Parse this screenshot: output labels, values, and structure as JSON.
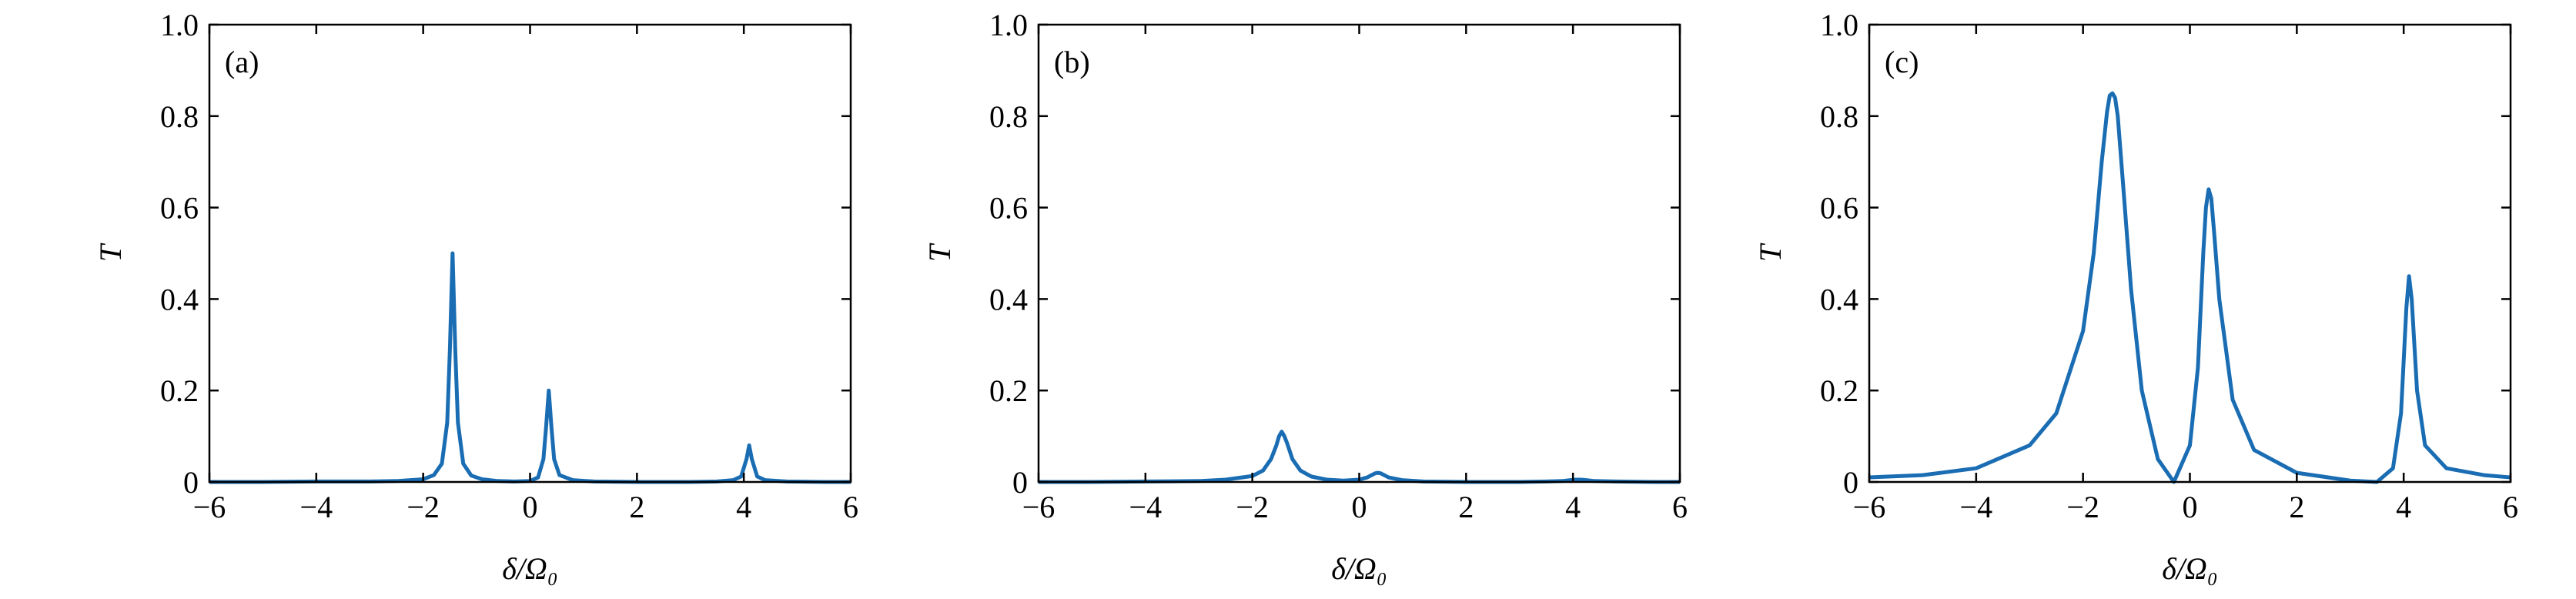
{
  "chart_data": [
    {
      "type": "line",
      "panel_label": "(a)",
      "xlabel": "δ/Ω₀",
      "ylabel": "T",
      "xlim": [
        -6,
        6
      ],
      "ylim": [
        0,
        1.0
      ],
      "xticks": [
        {
          "value": -6,
          "label": "−6"
        },
        {
          "value": -4,
          "label": "−4"
        },
        {
          "value": -2,
          "label": "−2"
        },
        0,
        2,
        4,
        6
      ],
      "yticks": [
        0,
        0.2,
        0.4,
        0.6,
        0.8,
        {
          "value": 1.0,
          "label": "1.0"
        }
      ],
      "x": [
        -6,
        -5,
        -4,
        -3,
        -2.5,
        -2,
        -1.8,
        -1.65,
        -1.55,
        -1.5,
        -1.45,
        -1.4,
        -1.35,
        -1.25,
        -1.1,
        -0.9,
        -0.6,
        -0.3,
        0,
        0.15,
        0.25,
        0.3,
        0.35,
        0.4,
        0.45,
        0.55,
        0.8,
        1.2,
        2,
        3,
        3.5,
        3.8,
        3.95,
        4.05,
        4.1,
        4.15,
        4.25,
        4.4,
        4.8,
        5.5,
        6
      ],
      "series": [
        {
          "color": "#1a6db3",
          "values": [
            0,
            0,
            0.001,
            0.001,
            0.002,
            0.006,
            0.015,
            0.04,
            0.13,
            0.29,
            0.5,
            0.29,
            0.13,
            0.04,
            0.014,
            0.006,
            0.002,
            0.001,
            0.002,
            0.01,
            0.05,
            0.12,
            0.2,
            0.12,
            0.05,
            0.015,
            0.004,
            0.001,
            0,
            0,
            0.001,
            0.004,
            0.012,
            0.05,
            0.08,
            0.05,
            0.012,
            0.004,
            0.001,
            0,
            0
          ]
        }
      ]
    },
    {
      "type": "line",
      "panel_label": "(b)",
      "xlabel": "δ/Ω₀",
      "ylabel": "T",
      "xlim": [
        -6,
        6
      ],
      "ylim": [
        0,
        1.0
      ],
      "xticks": [
        {
          "value": -6,
          "label": "−6"
        },
        {
          "value": -4,
          "label": "−4"
        },
        {
          "value": -2,
          "label": "−2"
        },
        0,
        2,
        4,
        6
      ],
      "yticks": [
        0,
        0.2,
        0.4,
        0.6,
        0.8,
        {
          "value": 1.0,
          "label": "1.0"
        }
      ],
      "x": [
        -6,
        -5,
        -4,
        -3,
        -2.5,
        -2,
        -1.8,
        -1.65,
        -1.55,
        -1.5,
        -1.45,
        -1.4,
        -1.35,
        -1.25,
        -1.1,
        -0.9,
        -0.6,
        -0.3,
        0,
        0.15,
        0.25,
        0.3,
        0.35,
        0.4,
        0.45,
        0.55,
        0.8,
        1.2,
        2,
        3,
        3.5,
        3.8,
        3.95,
        4.05,
        4.1,
        4.15,
        4.25,
        4.4,
        4.8,
        5.5,
        6
      ],
      "series": [
        {
          "color": "#1a6db3",
          "values": [
            0,
            0,
            0.001,
            0.002,
            0.005,
            0.013,
            0.025,
            0.05,
            0.08,
            0.1,
            0.11,
            0.1,
            0.085,
            0.05,
            0.025,
            0.012,
            0.005,
            0.003,
            0.005,
            0.01,
            0.016,
            0.019,
            0.02,
            0.019,
            0.016,
            0.01,
            0.004,
            0.001,
            0,
            0,
            0.001,
            0.002,
            0.004,
            0.005,
            0.005,
            0.005,
            0.004,
            0.002,
            0.001,
            0,
            0
          ]
        }
      ]
    },
    {
      "type": "line",
      "panel_label": "(c)",
      "xlabel": "δ/Ω₀",
      "ylabel": "T",
      "xlim": [
        -6,
        6
      ],
      "ylim": [
        0,
        1.0
      ],
      "xticks": [
        {
          "value": -6,
          "label": "−6"
        },
        {
          "value": -4,
          "label": "−4"
        },
        {
          "value": -2,
          "label": "−2"
        },
        0,
        2,
        4,
        6
      ],
      "yticks": [
        0,
        0.2,
        0.4,
        0.6,
        0.8,
        {
          "value": 1.0,
          "label": "1.0"
        }
      ],
      "x": [
        -6,
        -5,
        -4,
        -3,
        -2.5,
        -2,
        -1.8,
        -1.65,
        -1.55,
        -1.5,
        -1.45,
        -1.4,
        -1.35,
        -1.25,
        -1.1,
        -0.9,
        -0.6,
        -0.3,
        0,
        0.15,
        0.25,
        0.3,
        0.35,
        0.4,
        0.45,
        0.55,
        0.8,
        1.2,
        2,
        3,
        3.5,
        3.8,
        3.95,
        4.05,
        4.1,
        4.15,
        4.25,
        4.4,
        4.8,
        5.5,
        6
      ],
      "series": [
        {
          "color": "#1a6db3",
          "values": [
            0.01,
            0.015,
            0.03,
            0.08,
            0.15,
            0.33,
            0.5,
            0.7,
            0.81,
            0.845,
            0.85,
            0.84,
            0.8,
            0.65,
            0.42,
            0.2,
            0.05,
            0,
            0.08,
            0.25,
            0.5,
            0.6,
            0.64,
            0.62,
            0.55,
            0.4,
            0.18,
            0.07,
            0.02,
            0.003,
            0,
            0.03,
            0.15,
            0.38,
            0.45,
            0.4,
            0.2,
            0.08,
            0.03,
            0.015,
            0.01
          ]
        }
      ]
    }
  ]
}
